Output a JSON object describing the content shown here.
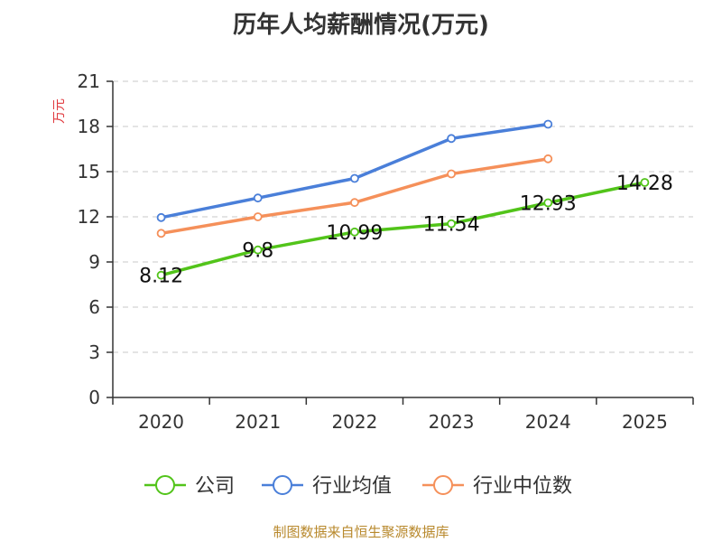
{
  "chart_data": {
    "type": "line",
    "title": "历年人均薪酬情况(万元)",
    "ylabel": "万元",
    "xlabel": "",
    "categories": [
      "2020",
      "2021",
      "2022",
      "2023",
      "2024",
      "2025"
    ],
    "ylim": [
      0,
      21
    ],
    "yticks": [
      0,
      3,
      6,
      9,
      12,
      15,
      18,
      21
    ],
    "grid": true,
    "legend_position": "bottom",
    "series": [
      {
        "name": "公司",
        "color": "#52c41a",
        "values": [
          8.12,
          9.8,
          10.99,
          11.54,
          12.93,
          14.28
        ],
        "labels": [
          "8.12",
          "9.8",
          "10.99",
          "11.54",
          "12.93",
          "14.28"
        ]
      },
      {
        "name": "行业均值",
        "color": "#4a7fd9",
        "values": [
          11.95,
          13.25,
          14.55,
          17.2,
          18.15,
          null
        ]
      },
      {
        "name": "行业中位数",
        "color": "#f5905a",
        "values": [
          10.9,
          12.0,
          12.95,
          14.85,
          15.85,
          null
        ]
      }
    ]
  },
  "source": "制图数据来自恒生聚源数据库"
}
